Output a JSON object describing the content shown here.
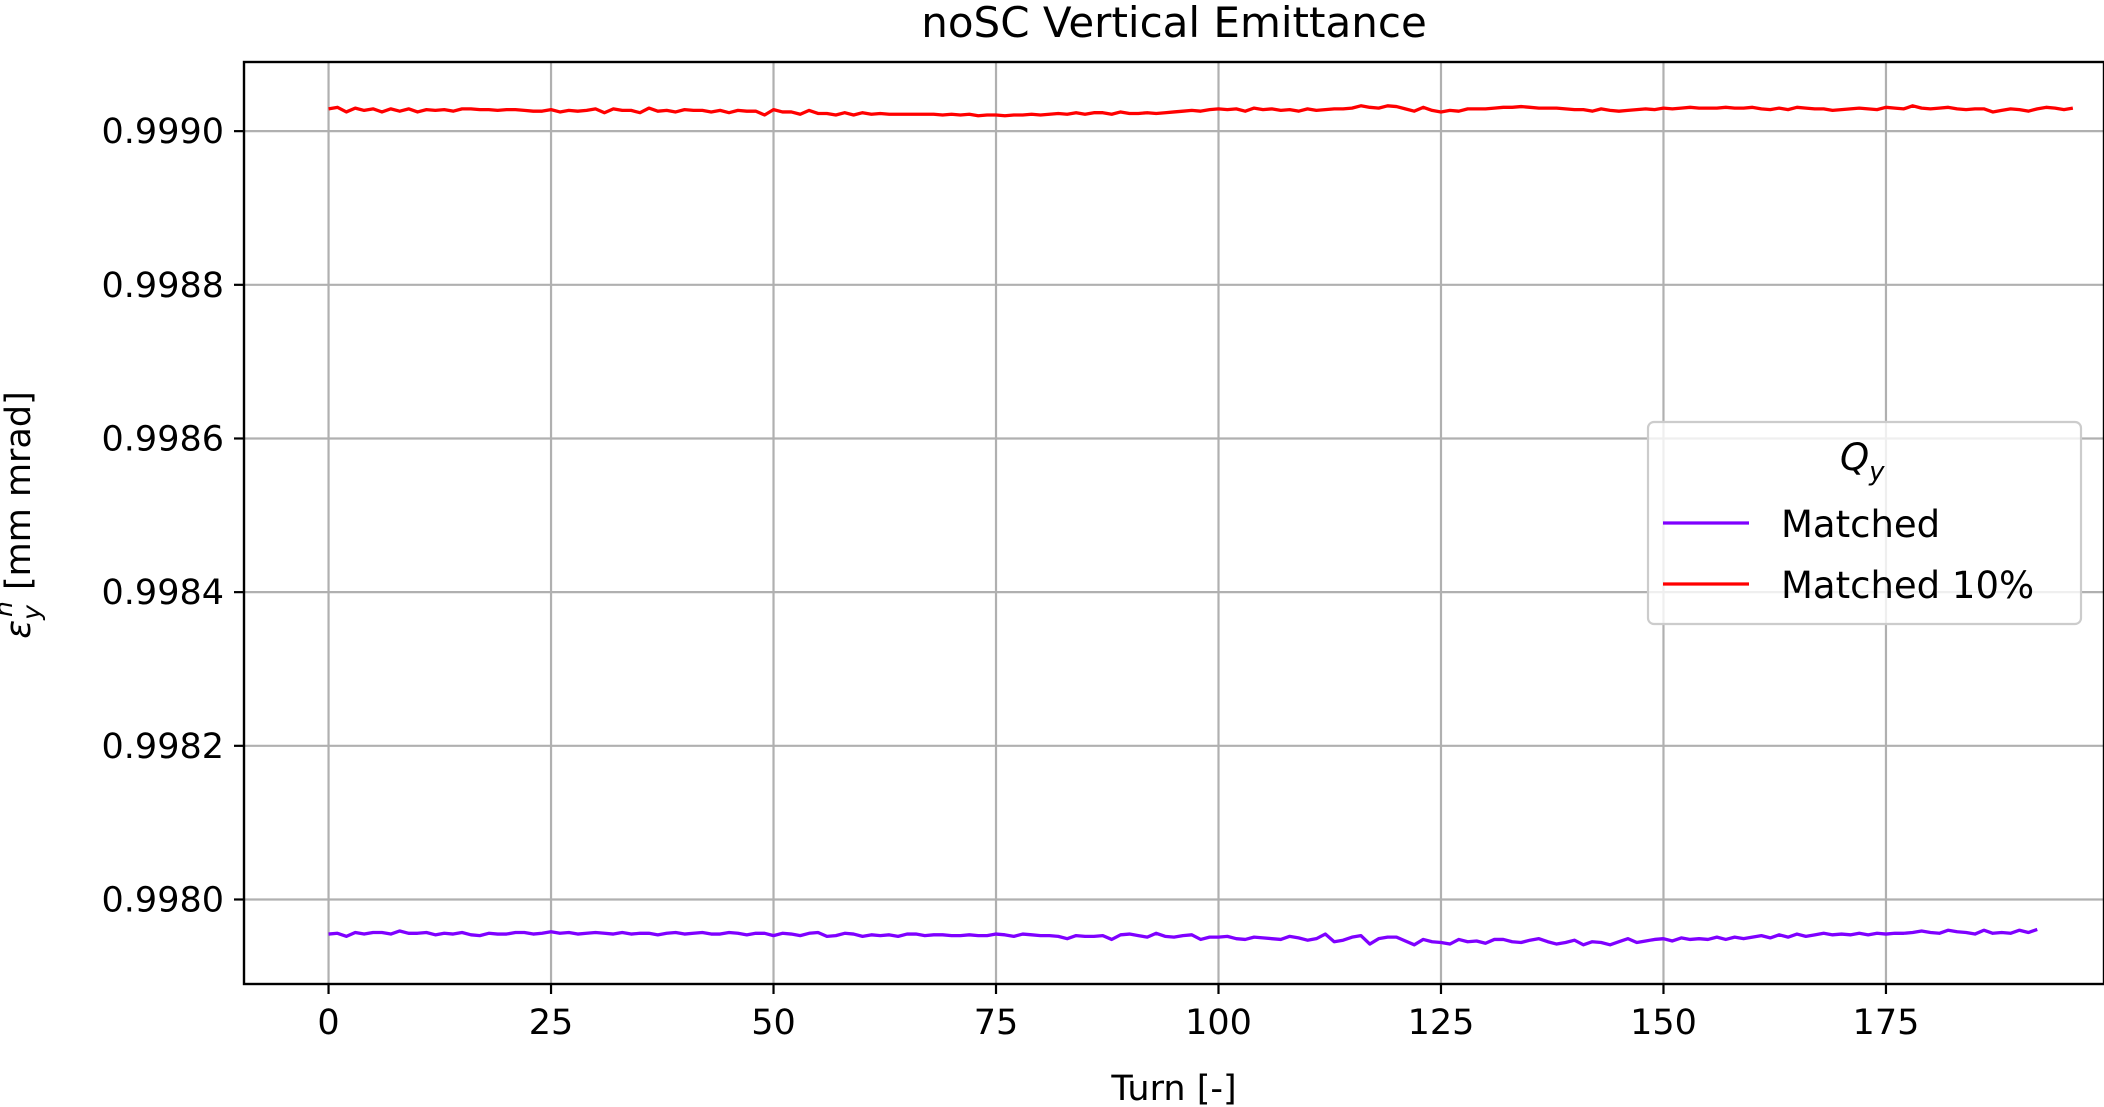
{
  "chart_data": {
    "type": "line",
    "title": "noSC Vertical Emittance",
    "xlabel": "Turn [-]",
    "ylabel": {
      "main": "ε",
      "sub": "y",
      "sup": "n",
      "unit": " [mm mrad]"
    },
    "xlim": [
      -9.5,
      199.5
    ],
    "ylim": [
      0.99789,
      0.99909
    ],
    "xticks": [
      0,
      25,
      50,
      75,
      100,
      125,
      150,
      175
    ],
    "xtick_labels": [
      "0",
      "25",
      "50",
      "75",
      "100",
      "125",
      "150",
      "175"
    ],
    "yticks": [
      0.998,
      0.9982,
      0.9984,
      0.9986,
      0.9988,
      0.999
    ],
    "ytick_labels": [
      "0.9980",
      "0.9982",
      "0.9984",
      "0.9986",
      "0.9988",
      "0.9990"
    ],
    "grid": true,
    "legend": {
      "title_main": "Q",
      "title_sub": "y",
      "placement": "center-right"
    },
    "series": [
      {
        "name": "Matched",
        "color": "#7f00ff",
        "x_start": 0,
        "x_step": 1,
        "values": [
          0.997955,
          0.997956,
          0.997952,
          0.997957,
          0.997955,
          0.997957,
          0.997957,
          0.997955,
          0.997959,
          0.997956,
          0.997956,
          0.997957,
          0.997954,
          0.997956,
          0.997955,
          0.997957,
          0.997954,
          0.997953,
          0.997956,
          0.997955,
          0.997955,
          0.997957,
          0.997957,
          0.997955,
          0.997956,
          0.997958,
          0.997956,
          0.997957,
          0.997955,
          0.997956,
          0.997957,
          0.997956,
          0.997955,
          0.997957,
          0.997955,
          0.997956,
          0.997956,
          0.997954,
          0.997956,
          0.997957,
          0.997955,
          0.997956,
          0.997957,
          0.997955,
          0.997955,
          0.997957,
          0.997956,
          0.997954,
          0.997956,
          0.997956,
          0.997953,
          0.997956,
          0.997955,
          0.997953,
          0.997956,
          0.997957,
          0.997952,
          0.997953,
          0.997956,
          0.997955,
          0.997952,
          0.997954,
          0.997953,
          0.997954,
          0.997952,
          0.997955,
          0.997955,
          0.997953,
          0.997954,
          0.997954,
          0.997953,
          0.997953,
          0.997954,
          0.997953,
          0.997953,
          0.997955,
          0.997954,
          0.997952,
          0.997955,
          0.997954,
          0.997953,
          0.997953,
          0.997952,
          0.997949,
          0.997953,
          0.997952,
          0.997952,
          0.997953,
          0.997948,
          0.997954,
          0.997955,
          0.997953,
          0.997951,
          0.997956,
          0.997952,
          0.997951,
          0.997953,
          0.997954,
          0.997948,
          0.997951,
          0.997951,
          0.997952,
          0.997949,
          0.997948,
          0.997951,
          0.99795,
          0.997949,
          0.997948,
          0.997952,
          0.99795,
          0.997947,
          0.997949,
          0.997955,
          0.997945,
          0.997947,
          0.997951,
          0.997953,
          0.997942,
          0.997949,
          0.997951,
          0.997951,
          0.997946,
          0.997941,
          0.997948,
          0.997945,
          0.997944,
          0.997942,
          0.997948,
          0.997945,
          0.997946,
          0.997943,
          0.997948,
          0.997948,
          0.997945,
          0.997944,
          0.997947,
          0.997949,
          0.997945,
          0.997942,
          0.997944,
          0.997947,
          0.997941,
          0.997945,
          0.997944,
          0.997941,
          0.997945,
          0.997949,
          0.997944,
          0.997946,
          0.997948,
          0.997949,
          0.997946,
          0.99795,
          0.997948,
          0.997949,
          0.997948,
          0.997951,
          0.997948,
          0.997951,
          0.997949,
          0.997951,
          0.997953,
          0.99795,
          0.997954,
          0.997951,
          0.997955,
          0.997952,
          0.997954,
          0.997956,
          0.997954,
          0.997955,
          0.997954,
          0.997956,
          0.997954,
          0.997956,
          0.997955,
          0.997956,
          0.997956,
          0.997957,
          0.997959,
          0.997957,
          0.997956,
          0.99796,
          0.997958,
          0.997957,
          0.997955,
          0.99796,
          0.997956,
          0.997957,
          0.997956,
          0.99796,
          0.997957,
          0.997961
        ]
      },
      {
        "name": "Matched 10%",
        "color": "#ff0000",
        "x_start": 0,
        "x_step": 1,
        "values": [
          0.999029,
          0.999031,
          0.999025,
          0.99903,
          0.999027,
          0.999029,
          0.999025,
          0.999029,
          0.999026,
          0.999029,
          0.999025,
          0.999028,
          0.999027,
          0.999028,
          0.999026,
          0.999029,
          0.999029,
          0.999028,
          0.999028,
          0.999027,
          0.999028,
          0.999028,
          0.999027,
          0.999026,
          0.999026,
          0.999028,
          0.999025,
          0.999027,
          0.999026,
          0.999027,
          0.999029,
          0.999024,
          0.999029,
          0.999027,
          0.999027,
          0.999024,
          0.99903,
          0.999026,
          0.999027,
          0.999025,
          0.999028,
          0.999027,
          0.999027,
          0.999025,
          0.999027,
          0.999024,
          0.999027,
          0.999026,
          0.999026,
          0.999021,
          0.999028,
          0.999025,
          0.999025,
          0.999022,
          0.999027,
          0.999023,
          0.999023,
          0.999021,
          0.999024,
          0.999021,
          0.999024,
          0.999022,
          0.999023,
          0.999022,
          0.999022,
          0.999022,
          0.999022,
          0.999022,
          0.999022,
          0.999021,
          0.999022,
          0.999021,
          0.999022,
          0.99902,
          0.999021,
          0.999021,
          0.99902,
          0.999021,
          0.999021,
          0.999022,
          0.999021,
          0.999022,
          0.999023,
          0.999022,
          0.999024,
          0.999022,
          0.999024,
          0.999024,
          0.999022,
          0.999025,
          0.999023,
          0.999023,
          0.999024,
          0.999023,
          0.999024,
          0.999025,
          0.999026,
          0.999027,
          0.999026,
          0.999028,
          0.999029,
          0.999028,
          0.999029,
          0.999026,
          0.99903,
          0.999028,
          0.999029,
          0.999027,
          0.999028,
          0.999026,
          0.999029,
          0.999027,
          0.999028,
          0.999029,
          0.999029,
          0.99903,
          0.999033,
          0.999031,
          0.99903,
          0.999033,
          0.999032,
          0.999029,
          0.999026,
          0.999031,
          0.999027,
          0.999025,
          0.999027,
          0.999026,
          0.999029,
          0.999029,
          0.999029,
          0.99903,
          0.999031,
          0.999031,
          0.999032,
          0.999031,
          0.99903,
          0.99903,
          0.99903,
          0.999029,
          0.999028,
          0.999028,
          0.999026,
          0.999029,
          0.999027,
          0.999026,
          0.999027,
          0.999028,
          0.999029,
          0.999028,
          0.99903,
          0.999029,
          0.99903,
          0.999031,
          0.99903,
          0.99903,
          0.99903,
          0.999031,
          0.99903,
          0.99903,
          0.999031,
          0.999029,
          0.999028,
          0.99903,
          0.999028,
          0.999031,
          0.99903,
          0.999029,
          0.999029,
          0.999027,
          0.999028,
          0.999029,
          0.99903,
          0.999029,
          0.999028,
          0.999031,
          0.99903,
          0.999029,
          0.999033,
          0.99903,
          0.999029,
          0.99903,
          0.999031,
          0.999029,
          0.999028,
          0.999029,
          0.999029,
          0.999025,
          0.999027,
          0.999029,
          0.999028,
          0.999026,
          0.999029,
          0.999031,
          0.99903,
          0.999028,
          0.99903
        ]
      }
    ]
  }
}
